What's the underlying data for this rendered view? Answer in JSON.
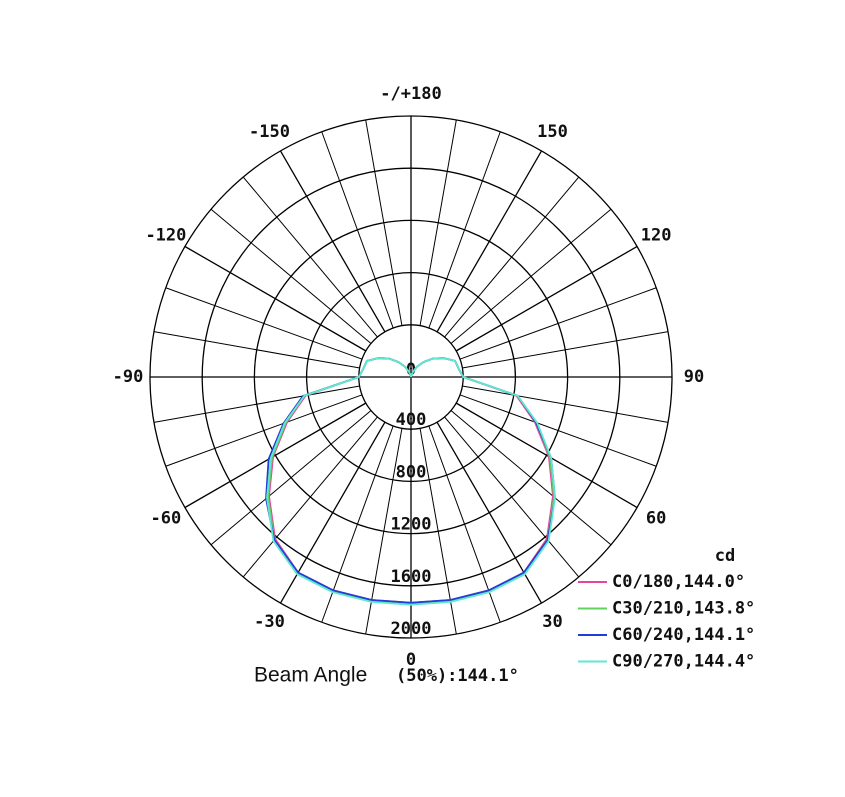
{
  "chart_data": {
    "type": "polar",
    "unit_label": "cd",
    "beam_angle_label": "Beam Angle",
    "beam_angle_value": "(50%):144.1°",
    "rlim": [
      0,
      2000
    ],
    "rticks": [
      0,
      400,
      800,
      1200,
      1600,
      2000
    ],
    "angle_ticks": [
      {
        "value": 180,
        "label": "-/+180"
      },
      150,
      120,
      90,
      60,
      30,
      0,
      -30,
      -60,
      -90,
      -120,
      -150
    ],
    "angles": [
      -180,
      -170,
      -160,
      -150,
      -140,
      -130,
      -120,
      -110,
      -100,
      -90,
      -80,
      -70,
      -60,
      -50,
      -40,
      -30,
      -20,
      -10,
      0,
      10,
      20,
      30,
      40,
      50,
      60,
      70,
      80,
      90,
      100,
      110,
      120,
      130,
      140,
      150,
      160,
      170,
      180
    ],
    "series": [
      {
        "name": "C0/180,144.0°",
        "color": "#e8449a",
        "values": [
          0,
          10,
          40,
          90,
          150,
          220,
          290,
          360,
          370,
          400,
          820,
          1010,
          1220,
          1420,
          1620,
          1730,
          1740,
          1735,
          1730,
          1735,
          1740,
          1730,
          1620,
          1420,
          1220,
          1010,
          820,
          400,
          370,
          360,
          290,
          220,
          150,
          90,
          40,
          10,
          0
        ]
      },
      {
        "name": "C30/210,143.8°",
        "color": "#5fd35f",
        "values": [
          0,
          10,
          40,
          90,
          150,
          220,
          290,
          360,
          370,
          400,
          830,
          1020,
          1230,
          1430,
          1630,
          1735,
          1745,
          1740,
          1735,
          1740,
          1745,
          1735,
          1630,
          1430,
          1230,
          1020,
          830,
          400,
          370,
          360,
          290,
          220,
          150,
          90,
          40,
          10,
          0
        ]
      },
      {
        "name": "C60/240,144.1°",
        "color": "#1f3fd6",
        "values": [
          0,
          10,
          40,
          90,
          150,
          220,
          290,
          360,
          370,
          400,
          840,
          1040,
          1260,
          1450,
          1630,
          1730,
          1740,
          1735,
          1730,
          1735,
          1740,
          1730,
          1630,
          1440,
          1240,
          1020,
          830,
          400,
          370,
          360,
          290,
          220,
          150,
          90,
          40,
          10,
          0
        ]
      },
      {
        "name": "C90/270,144.4°",
        "color": "#5fe8d0",
        "values": [
          0,
          10,
          40,
          90,
          150,
          220,
          290,
          360,
          370,
          400,
          830,
          1030,
          1240,
          1440,
          1640,
          1745,
          1755,
          1750,
          1745,
          1750,
          1755,
          1745,
          1640,
          1440,
          1240,
          1030,
          830,
          400,
          370,
          360,
          290,
          220,
          150,
          90,
          40,
          10,
          0
        ]
      }
    ]
  }
}
